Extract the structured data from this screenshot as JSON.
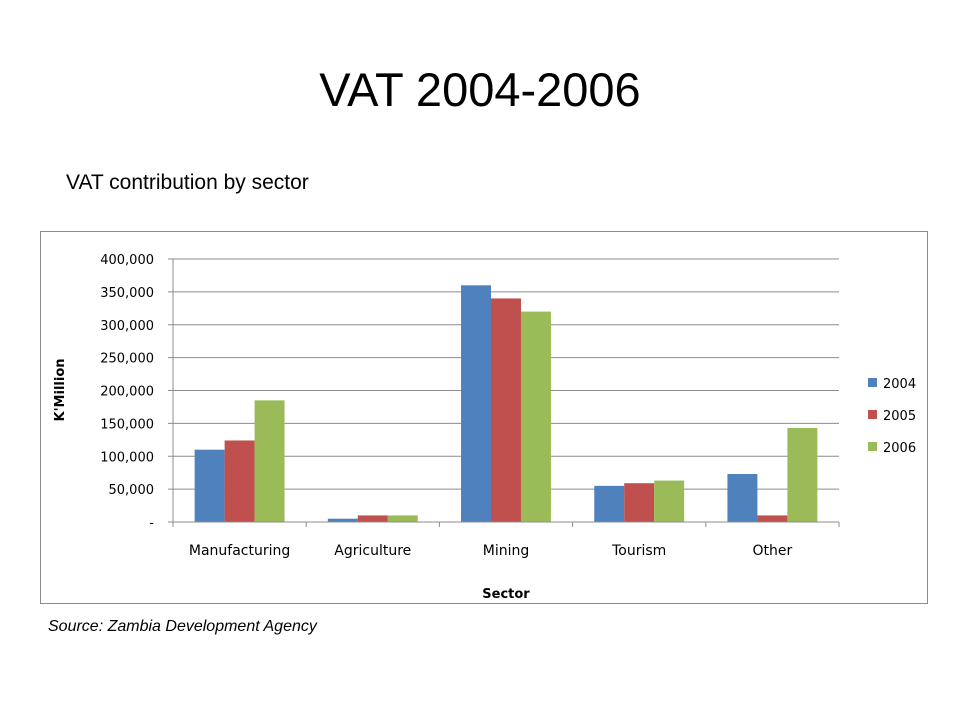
{
  "slide": {
    "title": "VAT 2004-2006",
    "subtitle": "VAT contribution by sector",
    "source": "Source: Zambia Development Agency"
  },
  "chart_data": {
    "type": "bar",
    "title": "",
    "xlabel": "Sector",
    "ylabel": "K'Million",
    "categories": [
      "Manufacturing",
      "Agriculture",
      "Mining",
      "Tourism",
      "Other"
    ],
    "series": [
      {
        "name": "2004",
        "color": "#4F81BD",
        "values": [
          110000,
          5000,
          360000,
          55000,
          73000
        ]
      },
      {
        "name": "2005",
        "color": "#C0504D",
        "values": [
          124000,
          10000,
          340000,
          59000,
          10000
        ]
      },
      {
        "name": "2006",
        "color": "#9BBB59",
        "values": [
          185000,
          10000,
          320000,
          63000,
          143000
        ]
      }
    ],
    "ylim": [
      0,
      400000
    ],
    "yticks": [
      0,
      50000,
      100000,
      150000,
      200000,
      250000,
      300000,
      350000,
      400000
    ],
    "ytick_labels": [
      "-",
      "50,000",
      "100,000",
      "150,000",
      "200,000",
      "250,000",
      "300,000",
      "350,000",
      "400,000"
    ],
    "grid": true,
    "legend": "right"
  }
}
